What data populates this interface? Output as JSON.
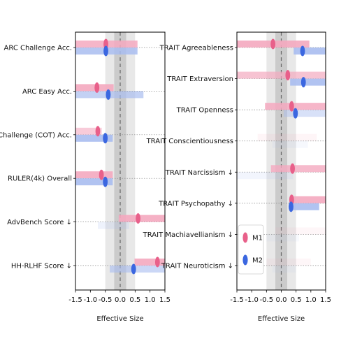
{
  "colors": {
    "m1": "#e8608a",
    "m2": "#3b67e0",
    "m1_band": "#f4a9bf",
    "m2_band": "#a9bdf0",
    "grid": "#888888",
    "zero": "#666666"
  },
  "chart_data": [
    {
      "type": "scatter",
      "xlabel": "Effective Size",
      "xlim": [
        -1.5,
        1.5
      ],
      "xticks": [
        "-1.5",
        "-1.0",
        "-0.5",
        "0.0",
        "0.5",
        "1.0",
        "1.5"
      ],
      "xtick_values": [
        -1.5,
        -1.0,
        -0.5,
        0.0,
        0.5,
        1.0,
        1.5
      ],
      "categories": [
        "ARC Challenge Acc.",
        "ARC Easy Acc.",
        "ARC Challenge (COT) Acc.",
        "RULER(4k) Overall",
        "AdvBench Score ↓",
        "HH-RLHF Score ↓"
      ],
      "series": [
        {
          "name": "M1",
          "values": [
            -0.48,
            -0.78,
            -0.75,
            -0.63,
            0.6,
            1.25
          ],
          "ci": [
            [
              -1.5,
              0.58
            ],
            [
              -1.5,
              -0.22
            ],
            [
              -1.5,
              -0.62
            ],
            [
              -1.5,
              -0.25
            ],
            [
              -0.05,
              1.5
            ],
            [
              0.48,
              1.5
            ]
          ],
          "band_strength": [
            0.85,
            0.9,
            0.6,
            0.9,
            0.9,
            0.9
          ]
        },
        {
          "name": "M2",
          "values": [
            -0.48,
            -0.4,
            -0.5,
            -0.5,
            null,
            0.45
          ],
          "ci": [
            [
              -1.5,
              0.58
            ],
            [
              -1.5,
              0.78
            ],
            [
              -1.5,
              -0.25
            ],
            [
              -1.5,
              -0.25
            ],
            [
              -0.75,
              0.3
            ],
            [
              -0.35,
              1.5
            ]
          ],
          "band_strength": [
            0.85,
            0.7,
            0.9,
            0.9,
            0.2,
            0.6
          ]
        }
      ]
    },
    {
      "type": "scatter",
      "xlabel": "Effective Size",
      "xlim": [
        -1.5,
        1.5
      ],
      "xticks": [
        "-1.5",
        "-1.0",
        "-0.5",
        "0.0",
        "0.5",
        "1.0",
        "1.5"
      ],
      "xtick_values": [
        -1.5,
        -1.0,
        -0.5,
        0.0,
        0.5,
        1.0,
        1.5
      ],
      "categories": [
        "TRAIT Agreeableness",
        "TRAIT Extraversion",
        "TRAIT Openness",
        "TRAIT Conscientiousness",
        "TRAIT Narcissism ↓",
        "TRAIT Psychopathy ↓",
        "TRAIT Machiavellianism ↓",
        "TRAIT Neuroticism ↓"
      ],
      "series": [
        {
          "name": "M1",
          "values": [
            -0.28,
            0.22,
            0.35,
            null,
            0.38,
            0.35,
            null,
            null
          ],
          "ci": [
            [
              -1.5,
              0.95
            ],
            [
              -1.5,
              1.5
            ],
            [
              -0.55,
              1.5
            ],
            [
              -0.8,
              1.2
            ],
            [
              -0.35,
              1.5
            ],
            [
              0.3,
              1.5
            ],
            [
              -0.2,
              1.5
            ],
            [
              -0.5,
              1.0
            ]
          ],
          "band_strength": [
            0.9,
            0.7,
            0.85,
            0.12,
            0.8,
            0.9,
            0.1,
            0.1
          ]
        },
        {
          "name": "M2",
          "values": [
            0.72,
            0.75,
            0.48,
            null,
            null,
            0.33,
            null,
            null
          ],
          "ci": [
            [
              0.42,
              1.5
            ],
            [
              0.3,
              1.5
            ],
            [
              0.08,
              1.5
            ],
            [
              -0.3,
              0.9
            ],
            [
              -1.5,
              0.4
            ],
            [
              0.28,
              1.28
            ],
            [
              -0.5,
              0.6
            ],
            [
              -0.3,
              0.5
            ]
          ],
          "band_strength": [
            0.9,
            0.9,
            0.45,
            0.1,
            0.15,
            0.9,
            0.08,
            0.08
          ]
        }
      ],
      "legend": {
        "placement": "bottom-left",
        "entries": [
          "M1",
          "M2"
        ]
      }
    }
  ]
}
